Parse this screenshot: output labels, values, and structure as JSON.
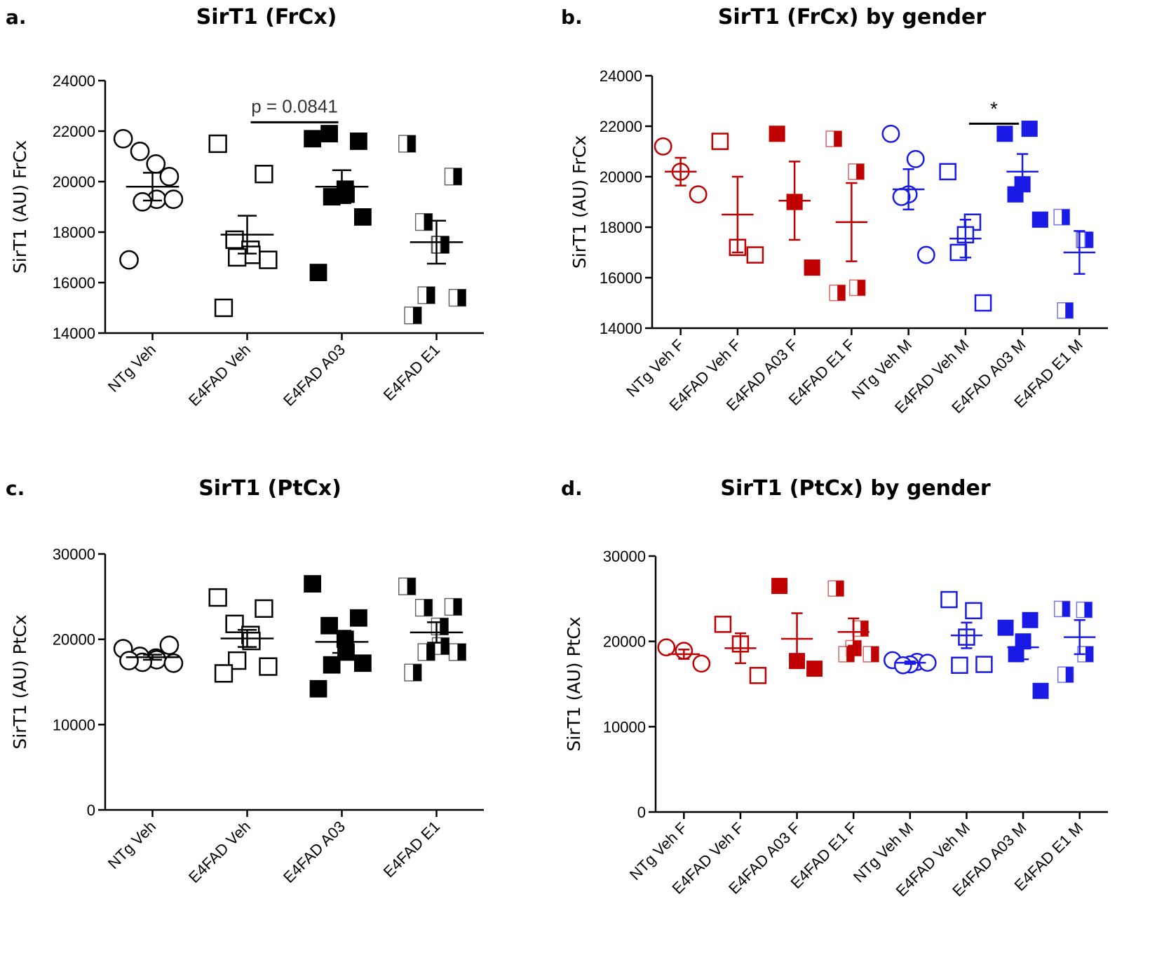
{
  "chart_data": [
    {
      "panel": "a.",
      "type": "scatter",
      "title": "SirT1 (FrCx)",
      "ylabel": "SirT1 (AU) FrCx",
      "ylim": [
        14000,
        24000
      ],
      "yticks": [
        "14000",
        "16000",
        "18000",
        "20000",
        "22000",
        "24000"
      ],
      "categories": [
        "NTg Veh",
        "E4FAD Veh",
        "E4FAD A03",
        "E4FAD E1"
      ],
      "groups": [
        {
          "name": "NTg Veh",
          "marker": "circle",
          "color": "#000000",
          "values": [
            21700,
            20200,
            21200,
            20700,
            19300,
            19200,
            19300,
            16900
          ],
          "mean": 19800,
          "sem": 550
        },
        {
          "name": "E4FAD Veh",
          "marker": "square",
          "color": "#000000",
          "values": [
            21500,
            20300,
            17700,
            17300,
            17100,
            17000,
            16900,
            15000
          ],
          "mean": 17900,
          "sem": 750
        },
        {
          "name": "E4FAD A03",
          "marker": "square-filled",
          "color": "#000000",
          "values": [
            21700,
            21600,
            21900,
            19700,
            19500,
            19400,
            18600,
            16400
          ],
          "mean": 19800,
          "sem": 650
        },
        {
          "name": "E4FAD E1",
          "marker": "square-half",
          "color": "#000000",
          "values": [
            21500,
            20200,
            18400,
            17500,
            17500,
            15500,
            15400,
            14700
          ],
          "mean": 17600,
          "sem": 850
        }
      ],
      "annotations": [
        {
          "text": "p = 0.0841",
          "from": "E4FAD Veh",
          "to": "E4FAD A03",
          "y": 22350
        }
      ]
    },
    {
      "panel": "b.",
      "type": "scatter",
      "title": "SirT1 (FrCx) by gender",
      "ylabel": "SirT1 (AU) FrCx",
      "ylim": [
        14000,
        24000
      ],
      "yticks": [
        "14000",
        "16000",
        "18000",
        "20000",
        "22000",
        "24000"
      ],
      "categories": [
        "NTg Veh F",
        "E4FAD Veh F",
        "E4FAD A03 F",
        "E4FAD E1 F",
        "NTg Veh M",
        "E4FAD Veh M",
        "E4FAD A03 M",
        "E4FAD E1 M"
      ],
      "groups": [
        {
          "name": "NTg Veh F",
          "marker": "circle",
          "color": "#c00000",
          "values": [
            21200,
            20200,
            19300
          ],
          "mean": 20200,
          "sem": 550
        },
        {
          "name": "E4FAD Veh F",
          "marker": "square",
          "color": "#c00000",
          "values": [
            21400,
            17200,
            16900
          ],
          "mean": 18500,
          "sem": 1500
        },
        {
          "name": "E4FAD A03 F",
          "marker": "square-filled",
          "color": "#c00000",
          "values": [
            21700,
            19000,
            16400
          ],
          "mean": 19050,
          "sem": 1550
        },
        {
          "name": "E4FAD E1 F",
          "marker": "square-half",
          "color": "#c00000",
          "values": [
            21500,
            20200,
            15600,
            15400
          ],
          "mean": 18200,
          "sem": 1550
        },
        {
          "name": "NTg Veh M",
          "marker": "circle",
          "color": "#1a1ae6",
          "values": [
            21700,
            20700,
            19300,
            19200,
            16900
          ],
          "mean": 19500,
          "sem": 800
        },
        {
          "name": "E4FAD Veh M",
          "marker": "square",
          "color": "#1a1ae6",
          "values": [
            20200,
            18200,
            17700,
            17000,
            15000
          ],
          "mean": 17550,
          "sem": 750
        },
        {
          "name": "E4FAD A03 M",
          "marker": "square-filled",
          "color": "#1a1ae6",
          "values": [
            21700,
            21900,
            19700,
            19300,
            18300
          ],
          "mean": 20200,
          "sem": 700
        },
        {
          "name": "E4FAD E1 M",
          "marker": "square-half",
          "color": "#1a1ae6",
          "values": [
            18400,
            17500,
            17500,
            14700
          ],
          "mean": 17000,
          "sem": 850
        }
      ],
      "annotations": [
        {
          "text": "*",
          "from": "E4FAD Veh M",
          "to": "E4FAD A03 M",
          "y": 22100
        }
      ]
    },
    {
      "panel": "c.",
      "type": "scatter",
      "title": "SirT1 (PtCx)",
      "ylabel": "SirT1 (AU) PtCx",
      "ylim": [
        0,
        30000
      ],
      "yticks": [
        "0",
        "10000",
        "20000",
        "30000"
      ],
      "categories": [
        "NTg Veh",
        "E4FAD Veh",
        "E4FAD A03",
        "E4FAD E1"
      ],
      "groups": [
        {
          "name": "NTg Veh",
          "marker": "circle",
          "color": "#000000",
          "values": [
            18900,
            19300,
            18000,
            17800,
            17600,
            17300,
            17200,
            17500
          ],
          "mean": 17900,
          "sem": 300
        },
        {
          "name": "E4FAD Veh",
          "marker": "square",
          "color": "#000000",
          "values": [
            24900,
            23600,
            21800,
            20500,
            19800,
            17500,
            16800,
            16000
          ],
          "mean": 20100,
          "sem": 1000
        },
        {
          "name": "E4FAD A03",
          "marker": "square-filled",
          "color": "#000000",
          "values": [
            26500,
            22500,
            21600,
            20000,
            18500,
            17000,
            17200,
            14200
          ],
          "mean": 19700,
          "sem": 1300
        },
        {
          "name": "E4FAD E1",
          "marker": "square-half",
          "color": "#000000",
          "values": [
            26200,
            23800,
            23700,
            21500,
            19200,
            18500,
            18500,
            16100
          ],
          "mean": 20800,
          "sem": 1200
        }
      ],
      "annotations": []
    },
    {
      "panel": "d.",
      "type": "scatter",
      "title": "SirT1 (PtCx) by gender",
      "ylabel": "SirT1 (AU) PtCx",
      "ylim": [
        0,
        30000
      ],
      "yticks": [
        "0",
        "10000",
        "20000",
        "30000"
      ],
      "categories": [
        "NTg Veh F",
        "E4FAD Veh F",
        "E4FAD A03 F",
        "E4FAD E1 F",
        "NTg Veh M",
        "E4FAD Veh M",
        "E4FAD A03 M",
        "E4FAD E1 M"
      ],
      "groups": [
        {
          "name": "NTg Veh F",
          "marker": "circle",
          "color": "#c00000",
          "values": [
            19300,
            18900,
            17400
          ],
          "mean": 18500,
          "sem": 550
        },
        {
          "name": "E4FAD Veh F",
          "marker": "square",
          "color": "#c00000",
          "values": [
            22000,
            19700,
            16000
          ],
          "mean": 19200,
          "sem": 1750
        },
        {
          "name": "E4FAD A03 F",
          "marker": "square-filled",
          "color": "#c00000",
          "values": [
            26500,
            17700,
            16800
          ],
          "mean": 20300,
          "sem": 3000
        },
        {
          "name": "E4FAD E1 F",
          "marker": "square-half",
          "color": "#c00000",
          "values": [
            26200,
            21500,
            19200,
            18500,
            18500
          ],
          "mean": 21100,
          "sem": 1600
        },
        {
          "name": "NTg Veh M",
          "marker": "circle",
          "color": "#1a1ae6",
          "values": [
            17800,
            17600,
            17300,
            17200,
            17500
          ],
          "mean": 17500,
          "sem": 150
        },
        {
          "name": "E4FAD Veh M",
          "marker": "square",
          "color": "#1a1ae6",
          "values": [
            24900,
            23600,
            20500,
            17200,
            17300
          ],
          "mean": 20700,
          "sem": 1500
        },
        {
          "name": "E4FAD A03 M",
          "marker": "square-filled",
          "color": "#1a1ae6",
          "values": [
            21600,
            22500,
            20000,
            18500,
            14200
          ],
          "mean": 19300,
          "sem": 1400
        },
        {
          "name": "E4FAD E1 M",
          "marker": "square-half",
          "color": "#1a1ae6",
          "values": [
            23800,
            23700,
            18500,
            16100
          ],
          "mean": 20500,
          "sem": 2000
        }
      ],
      "annotations": []
    }
  ]
}
